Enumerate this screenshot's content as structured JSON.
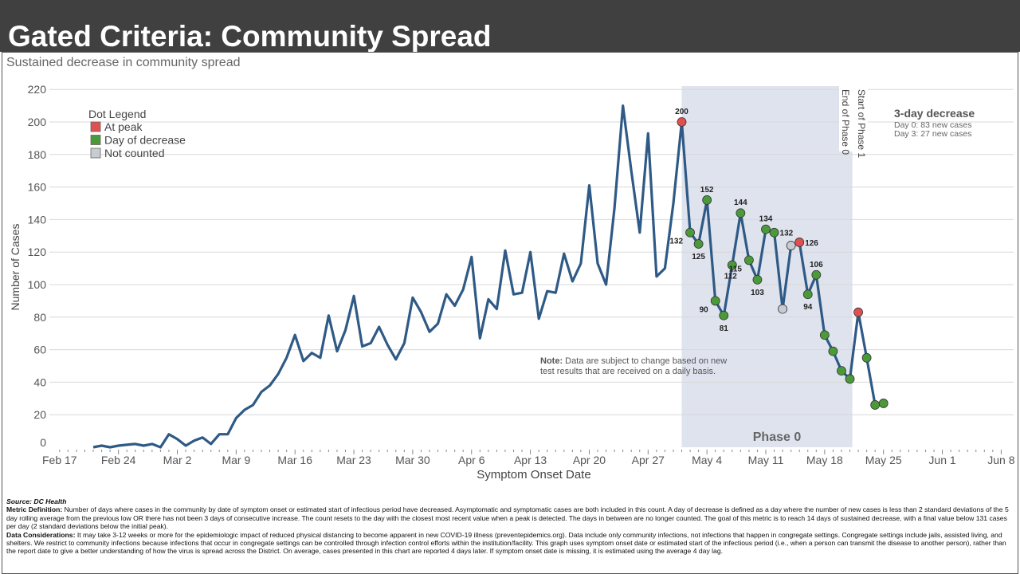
{
  "header": {
    "title": "Gated Criteria: Community Spread"
  },
  "subtitle": "Sustained decrease in community spread",
  "legend": {
    "title": "Dot Legend",
    "items": [
      {
        "label": "At peak",
        "color": "#e05050"
      },
      {
        "label": "Day of decrease",
        "color": "#4a9a3a"
      },
      {
        "label": "Not counted",
        "color": "#c8ccd2"
      }
    ]
  },
  "three_day": {
    "title": "3-day decrease",
    "day0_label": "Day 0:",
    "day0_value": "83",
    "day3_label": "Day 3:",
    "day3_value": "27",
    "suffix": "new cases"
  },
  "phase_labels": {
    "end_phase0": "End of Phase 0",
    "start_phase1": "Start of Phase 1",
    "phase0": "Phase 0"
  },
  "note": {
    "bold": "Note:",
    "text": "Data are subject to change based on new",
    "text2": "test results that are received on a daily basis."
  },
  "chart_data": {
    "type": "line",
    "title": "Sustained decrease in community spread",
    "xlabel": "Symptom Onset Date",
    "ylabel": "Number of Cases",
    "ylim": [
      0,
      220
    ],
    "yticks": [
      0,
      20,
      40,
      60,
      80,
      100,
      120,
      140,
      160,
      180,
      200,
      220
    ],
    "xticks": [
      "Feb 17",
      "Feb 24",
      "Mar 2",
      "Mar 9",
      "Mar 16",
      "Mar 23",
      "Mar 30",
      "Apr 6",
      "Apr 13",
      "Apr 20",
      "Apr 27",
      "May 4",
      "May 11",
      "May 18",
      "May 25",
      "Jun 1",
      "Jun 8"
    ],
    "start_date": "2020-02-21",
    "values": [
      0,
      1,
      0,
      1,
      1.5,
      2,
      1,
      2,
      0,
      8,
      5,
      1,
      4,
      6,
      2,
      8,
      8,
      18,
      23,
      26,
      34,
      38,
      45,
      55,
      69,
      53,
      58,
      55,
      81,
      59,
      72,
      93,
      62,
      64,
      74,
      63,
      54,
      64,
      92,
      83,
      71,
      76,
      94,
      87,
      97,
      117,
      67,
      91,
      85,
      121,
      94,
      95,
      120,
      79,
      96,
      95,
      119,
      102,
      113,
      161,
      113,
      100,
      147,
      210,
      170,
      132,
      193,
      105,
      110,
      150,
      200,
      132,
      125,
      152,
      90,
      81,
      112,
      144,
      115,
      103,
      134,
      132,
      85,
      124,
      126,
      94,
      106,
      69,
      59,
      47,
      42,
      83,
      55,
      26,
      27
    ],
    "dot_start_index": 70,
    "dot_status": [
      "peak",
      "decrease",
      "decrease",
      "decrease",
      "decrease",
      "decrease",
      "decrease",
      "decrease",
      "decrease",
      "decrease",
      "decrease",
      "decrease",
      "notcounted",
      "notcounted",
      "peak",
      "decrease",
      "decrease",
      "decrease",
      "decrease",
      "decrease",
      "decrease",
      "peak",
      "decrease",
      "decrease",
      "decrease"
    ],
    "data_labels": [
      {
        "index": 70,
        "text": "200",
        "pos": "above"
      },
      {
        "index": 71,
        "text": "132",
        "pos": "left"
      },
      {
        "index": 72,
        "text": "125",
        "pos": "below"
      },
      {
        "index": 73,
        "text": "152",
        "pos": "above"
      },
      {
        "index": 74,
        "text": "90",
        "pos": "left"
      },
      {
        "index": 75,
        "text": "81",
        "pos": "below"
      },
      {
        "index": 76,
        "text": "112",
        "pos": "belowleft"
      },
      {
        "index": 77,
        "text": "144",
        "pos": "above"
      },
      {
        "index": 78,
        "text": "115",
        "pos": "left"
      },
      {
        "index": 79,
        "text": "103",
        "pos": "below"
      },
      {
        "index": 80,
        "text": "134",
        "pos": "above"
      },
      {
        "index": 81,
        "text": "132",
        "pos": "right"
      },
      {
        "index": 84,
        "text": "126",
        "pos": "right"
      },
      {
        "index": 85,
        "text": "94",
        "pos": "below"
      },
      {
        "index": 86,
        "text": "106",
        "pos": "above"
      }
    ],
    "phase0_range_index": [
      70,
      90.3
    ],
    "grid": true
  },
  "footer": {
    "source": "Source: DC Health",
    "metric_label": "Metric Definition:",
    "metric_text": "Number of days where cases in the community by date of symptom onset or estimated start of infectious period have decreased. Asymptomatic and symptomatic cases are both included in this count. A day of decrease is defined as a day where the number of new cases is less than 2 standard deviations of the 5 day rolling average from the previous low OR there has not been 3 days of consecutive increase. The count resets to the day with the closest most recent value when a peak is detected. The days in between are no longer counted. The goal of this metric is to reach 14 days of sustained decrease, with a final value below 131 cases per day (2 standard deviations below the initial peak).",
    "data_label": "Data Considerations:",
    "data_text": "It may take 3-12 weeks or more for the epidemiologic impact of reduced physical distancing to become apparent in new COVID-19 illness (preventepidemics.org). Data include only community infections, not infections that happen in congregate settings. Congregate settings include jails, assisted living, and shelters. We restrict to community infections because infections that occur in congregate settings can be controlled through infection control efforts within the institution/facility. This graph uses symptom onset date or estimated start of the infectious period (i.e., when a person can transmit the disease to another person), rather than the report date to give a better understanding of how the virus is spread across the District. On average, cases presented in this chart are reported 4 days later. If symptom onset date is missing, it is estimated using the average 4 day lag."
  }
}
